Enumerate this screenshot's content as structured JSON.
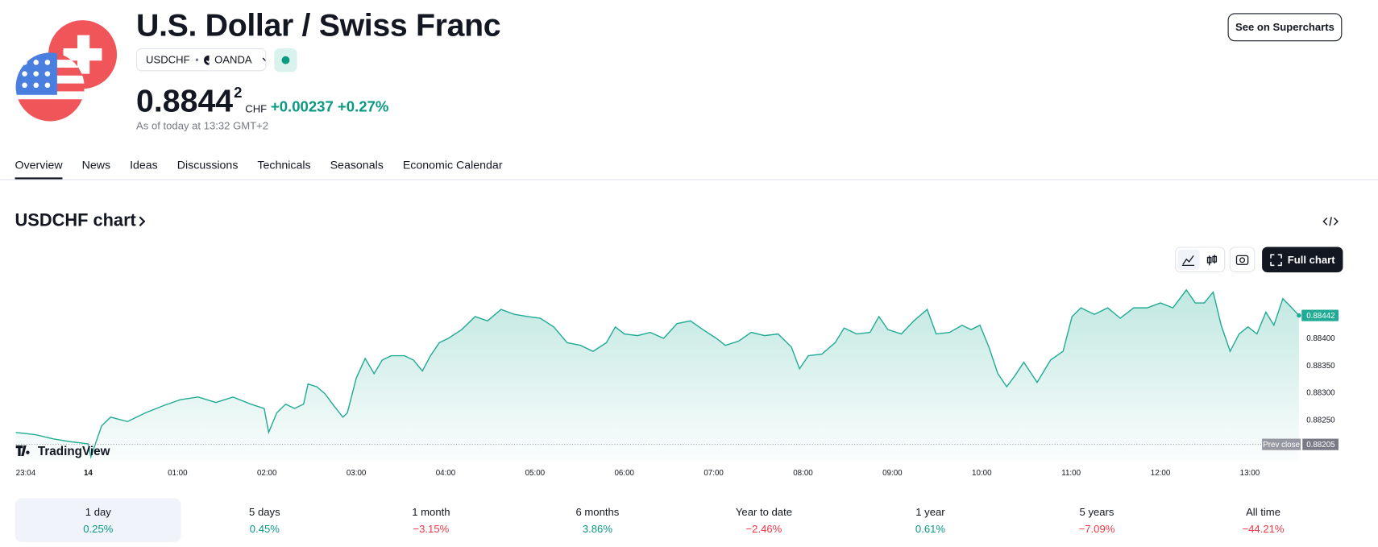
{
  "header": {
    "title": "U.S. Dollar / Swiss Franc",
    "symbol": "USDCHF",
    "exchange": "OANDA",
    "price": "0.8844",
    "price_sup": "2",
    "currency": "CHF",
    "change": "+0.00237",
    "change_percent": "+0.27%",
    "as_of": "As of today at 13:32 GMT+2",
    "button": "See on Supercharts"
  },
  "tabs": [
    "Overview",
    "News",
    "Ideas",
    "Discussions",
    "Technicals",
    "Seasonals",
    "Economic Calendar"
  ],
  "chart_section": {
    "title": "USDCHF chart",
    "full_chart_button": "Full chart",
    "watermark": "TradingView"
  },
  "chart_data": {
    "type": "area",
    "color": "#22ab94",
    "x": [
      23.19,
      23.41,
      23.61,
      23.8,
      24.0,
      24.03,
      24.15,
      24.25,
      24.44,
      24.64,
      24.84,
      25.03,
      25.23,
      25.43,
      25.62,
      25.82,
      25.97,
      26.02,
      26.11,
      26.21,
      26.31,
      26.41,
      26.46,
      26.56,
      26.65,
      26.75,
      26.85,
      26.9,
      27.0,
      27.1,
      27.2,
      27.29,
      27.39,
      27.54,
      27.64,
      27.74,
      27.83,
      27.93,
      28.03,
      28.18,
      28.33,
      28.47,
      28.62,
      28.77,
      28.92,
      29.06,
      29.21,
      29.36,
      29.51,
      29.65,
      29.8,
      29.9,
      30.0,
      30.15,
      30.29,
      30.44,
      30.59,
      30.74,
      30.88,
      31.03,
      31.13,
      31.28,
      31.42,
      31.57,
      31.72,
      31.87,
      31.96,
      32.06,
      32.21,
      32.36,
      32.46,
      32.6,
      32.75,
      32.85,
      32.95,
      33.1,
      33.24,
      33.39,
      33.49,
      33.64,
      33.78,
      33.88,
      33.98,
      34.08,
      34.18,
      34.28,
      34.37,
      34.47,
      34.62,
      34.77,
      34.91,
      35.01,
      35.11,
      35.26,
      35.41,
      35.55,
      35.7,
      35.85,
      36.0,
      36.14,
      36.29,
      36.39,
      36.49,
      36.59,
      36.68,
      36.78,
      36.88,
      36.98,
      37.08,
      37.18,
      37.27,
      37.37,
      37.47,
      37.55
    ],
    "values": [
      0.88227,
      0.88223,
      0.88215,
      0.8821,
      0.88206,
      0.88182,
      0.88239,
      0.88255,
      0.88247,
      0.88263,
      0.88276,
      0.88287,
      0.88292,
      0.88282,
      0.88292,
      0.88279,
      0.88271,
      0.88227,
      0.88263,
      0.88279,
      0.88271,
      0.88279,
      0.88316,
      0.88311,
      0.88298,
      0.88276,
      0.88255,
      0.88263,
      0.88327,
      0.88363,
      0.88335,
      0.8836,
      0.88368,
      0.88368,
      0.8836,
      0.8834,
      0.88368,
      0.88392,
      0.884,
      0.88416,
      0.8844,
      0.88432,
      0.88453,
      0.88444,
      0.8844,
      0.88437,
      0.88421,
      0.88392,
      0.88387,
      0.88376,
      0.88392,
      0.88421,
      0.88408,
      0.88405,
      0.88411,
      0.884,
      0.88427,
      0.88432,
      0.88416,
      0.884,
      0.88387,
      0.88395,
      0.88411,
      0.88405,
      0.88408,
      0.88384,
      0.88344,
      0.88368,
      0.88371,
      0.88392,
      0.88419,
      0.88408,
      0.88411,
      0.8844,
      0.88416,
      0.88408,
      0.88432,
      0.88453,
      0.88408,
      0.88411,
      0.88424,
      0.88416,
      0.88424,
      0.88384,
      0.88335,
      0.88311,
      0.88331,
      0.88356,
      0.88319,
      0.8836,
      0.88376,
      0.8844,
      0.88456,
      0.88444,
      0.88456,
      0.88437,
      0.88456,
      0.88456,
      0.88465,
      0.88456,
      0.88489,
      0.88465,
      0.88465,
      0.88485,
      0.88424,
      0.88376,
      0.88408,
      0.88421,
      0.88408,
      0.88448,
      0.88424,
      0.88473,
      0.88456,
      0.88442
    ],
    "last_value_label": "0.88442",
    "prev_close": {
      "title": "Prev close",
      "value": 0.88205,
      "label": "0.88205"
    },
    "xlim": [
      23.19,
      37.55
    ],
    "ylim": [
      0.88174,
      0.88497
    ],
    "xticks": [
      {
        "value": 23.067,
        "label": "23:04"
      },
      {
        "value": 24,
        "label": "14"
      },
      {
        "value": 25,
        "label": "01:00"
      },
      {
        "value": 26,
        "label": "02:00"
      },
      {
        "value": 27,
        "label": "03:00"
      },
      {
        "value": 28,
        "label": "04:00"
      },
      {
        "value": 29,
        "label": "05:00"
      },
      {
        "value": 30,
        "label": "06:00"
      },
      {
        "value": 31,
        "label": "07:00"
      },
      {
        "value": 32,
        "label": "08:00"
      },
      {
        "value": 33,
        "label": "09:00"
      },
      {
        "value": 34,
        "label": "10:00"
      },
      {
        "value": 35,
        "label": "11:00"
      },
      {
        "value": 36,
        "label": "12:00"
      },
      {
        "value": 37,
        "label": "13:00"
      }
    ],
    "yticks": [
      {
        "value": 0.8825,
        "label": "0.88250"
      },
      {
        "value": 0.883,
        "label": "0.88300"
      },
      {
        "value": 0.8835,
        "label": "0.88350"
      },
      {
        "value": 0.884,
        "label": "0.88400"
      }
    ]
  },
  "periods": [
    {
      "label": "1 day",
      "change": "0.25%"
    },
    {
      "label": "5 days",
      "change": "0.45%"
    },
    {
      "label": "1 month",
      "change": "−3.15%"
    },
    {
      "label": "6 months",
      "change": "3.86%"
    },
    {
      "label": "Year to date",
      "change": "−2.46%"
    },
    {
      "label": "1 year",
      "change": "0.61%"
    },
    {
      "label": "5 years",
      "change": "−7.09%"
    },
    {
      "label": "All time",
      "change": "−44.21%"
    }
  ]
}
